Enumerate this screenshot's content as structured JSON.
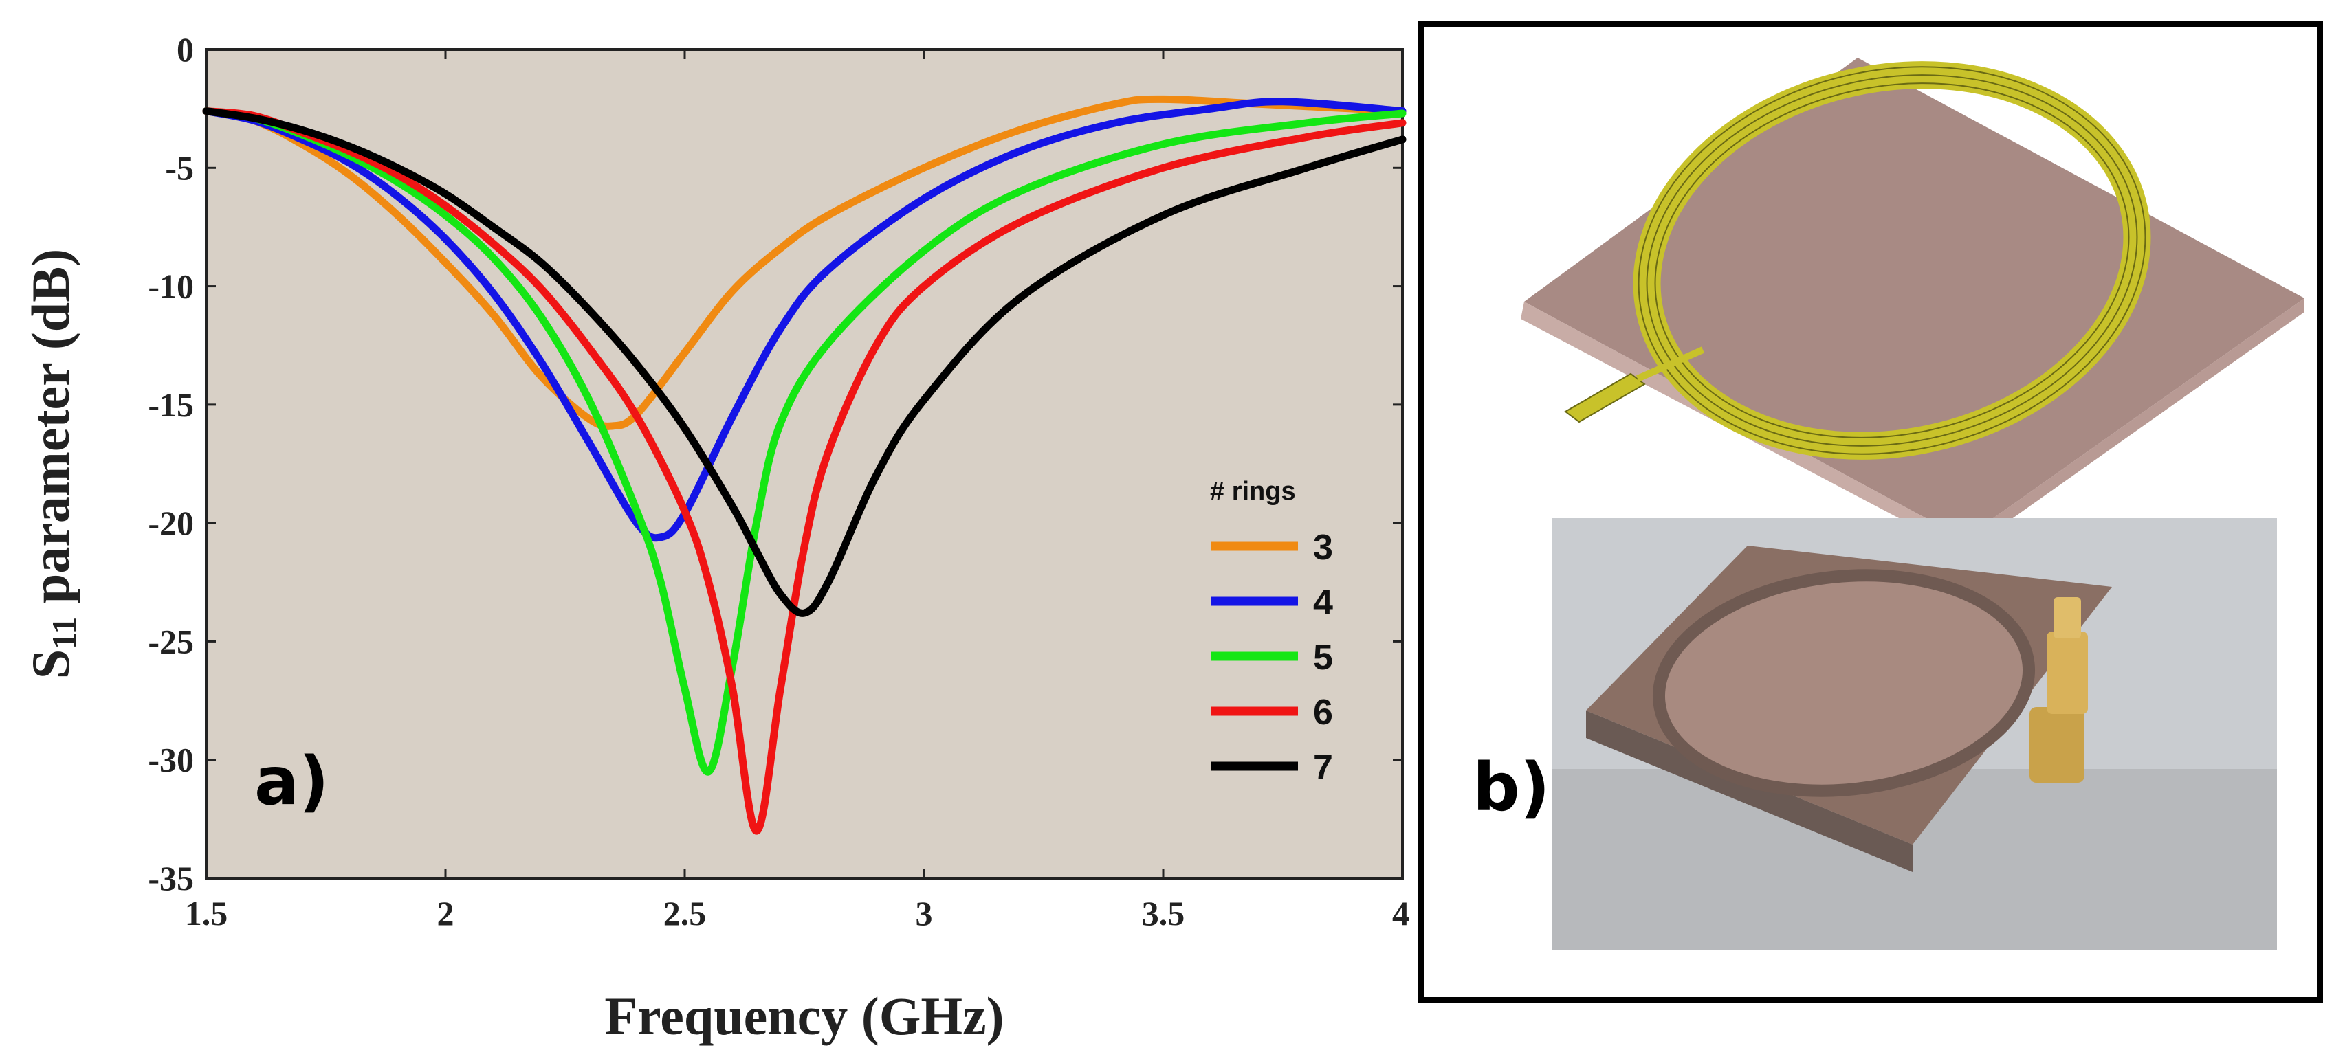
{
  "chart_data": {
    "type": "line",
    "xlabel": "Frequency  (GHz)",
    "ylabel_main": "S",
    "ylabel_sub": "11",
    "ylabel_rest": " parameter  (dB)",
    "xlim": [
      1.5,
      4
    ],
    "ylim": [
      -35,
      0
    ],
    "xticks": [
      "1.5",
      "2",
      "2.5",
      "3",
      "3.5",
      "4"
    ],
    "yticks": [
      "0",
      "-5",
      "-10",
      "-15",
      "-20",
      "-25",
      "-30",
      "-35"
    ],
    "legend_title": "# rings",
    "panel_label": "a)",
    "series": [
      {
        "name": "3",
        "color": "#f08a12",
        "x": [
          1.5,
          1.6,
          1.7,
          1.8,
          1.9,
          2.0,
          2.1,
          2.2,
          2.3,
          2.35,
          2.4,
          2.5,
          2.6,
          2.7,
          2.8,
          3.0,
          3.2,
          3.4,
          3.5,
          3.7,
          4.0
        ],
        "y": [
          -2.6,
          -3.0,
          -4.0,
          -5.3,
          -7.0,
          -9.0,
          -11.2,
          -13.8,
          -15.6,
          -15.9,
          -15.4,
          -12.8,
          -10.2,
          -8.4,
          -7.0,
          -5.0,
          -3.4,
          -2.3,
          -2.1,
          -2.3,
          -2.6
        ]
      },
      {
        "name": "4",
        "color": "#1414e6",
        "x": [
          1.5,
          1.6,
          1.7,
          1.8,
          1.9,
          2.0,
          2.1,
          2.2,
          2.3,
          2.4,
          2.45,
          2.5,
          2.6,
          2.7,
          2.8,
          3.0,
          3.2,
          3.4,
          3.6,
          3.75,
          4.0
        ],
        "y": [
          -2.6,
          -3.0,
          -3.8,
          -4.8,
          -6.2,
          -8.0,
          -10.3,
          -13.2,
          -16.6,
          -20.0,
          -20.6,
          -19.6,
          -15.5,
          -11.8,
          -9.3,
          -6.3,
          -4.3,
          -3.1,
          -2.5,
          -2.2,
          -2.6
        ]
      },
      {
        "name": "5",
        "color": "#14e614",
        "x": [
          1.5,
          1.6,
          1.7,
          1.8,
          1.9,
          2.0,
          2.1,
          2.2,
          2.3,
          2.4,
          2.45,
          2.5,
          2.55,
          2.6,
          2.65,
          2.7,
          2.8,
          3.0,
          3.2,
          3.5,
          3.8,
          4.0
        ],
        "y": [
          -2.6,
          -2.9,
          -3.6,
          -4.5,
          -5.6,
          -7.0,
          -8.8,
          -11.3,
          -14.8,
          -19.5,
          -22.5,
          -27.0,
          -30.5,
          -26.0,
          -20.0,
          -15.8,
          -12.4,
          -8.5,
          -6.0,
          -4.0,
          -3.1,
          -2.7
        ]
      },
      {
        "name": "6",
        "color": "#f01414",
        "x": [
          1.5,
          1.6,
          1.7,
          1.8,
          1.9,
          2.0,
          2.1,
          2.2,
          2.3,
          2.4,
          2.5,
          2.55,
          2.6,
          2.65,
          2.7,
          2.75,
          2.8,
          2.9,
          3.0,
          3.2,
          3.5,
          3.8,
          4.0
        ],
        "y": [
          -2.6,
          -2.8,
          -3.5,
          -4.3,
          -5.3,
          -6.6,
          -8.2,
          -10.1,
          -12.6,
          -15.5,
          -19.5,
          -22.5,
          -27.0,
          -33.0,
          -27.0,
          -21.0,
          -17.0,
          -12.5,
          -10.0,
          -7.3,
          -5.0,
          -3.7,
          -3.1
        ]
      },
      {
        "name": "7",
        "color": "#000000",
        "x": [
          1.5,
          1.6,
          1.7,
          1.8,
          1.9,
          2.0,
          2.1,
          2.2,
          2.3,
          2.4,
          2.5,
          2.6,
          2.65,
          2.7,
          2.75,
          2.8,
          2.9,
          3.0,
          3.2,
          3.5,
          3.8,
          4.0
        ],
        "y": [
          -2.6,
          -2.9,
          -3.4,
          -4.1,
          -5.0,
          -6.1,
          -7.5,
          -9.0,
          -11.0,
          -13.3,
          -16.0,
          -19.3,
          -21.2,
          -23.0,
          -23.8,
          -22.5,
          -18.0,
          -14.8,
          -10.5,
          -7.0,
          -5.0,
          -3.8
        ]
      }
    ]
  },
  "panel_b": {
    "label": "b)",
    "colors": {
      "substrate_top": "#a88a84",
      "substrate_side": "#c8aca6",
      "ring_gold": "#c8c22a",
      "photo_board": "#8a6f64",
      "connector_gold": "#c9a24a"
    }
  }
}
